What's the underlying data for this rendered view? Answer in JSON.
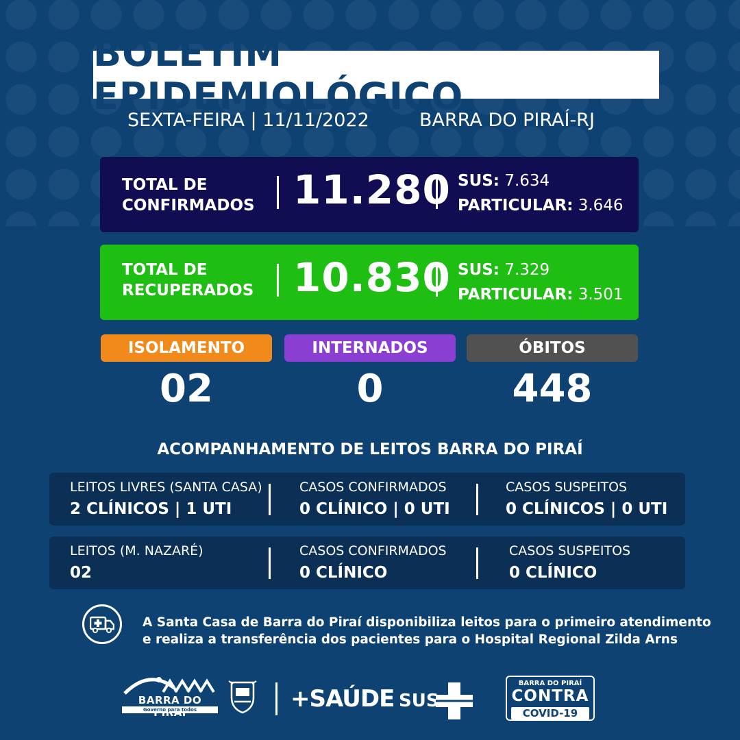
{
  "header": {
    "title": "BOLETIM EPIDEMIOLÓGICO",
    "date": "SEXTA-FEIRA | 11/11/2022",
    "city": "BARRA DO PIRAÍ-RJ"
  },
  "confirmed": {
    "label_line1": "TOTAL DE",
    "label_line2": "CONFIRMADOS",
    "total": "11.280",
    "sus_label": "SUS:",
    "sus_value": "7.634",
    "particular_label": "PARTICULAR:",
    "particular_value": "3.646"
  },
  "recovered": {
    "label_line1": "TOTAL DE",
    "label_line2": "RECUPERADOS",
    "total": "10.830",
    "sus_label": "SUS:",
    "sus_value": "7.329",
    "particular_label": "PARTICULAR:",
    "particular_value": "3.501"
  },
  "status": {
    "isolamento_label": "ISOLAMENTO",
    "isolamento_value": "02",
    "internados_label": "INTERNADOS",
    "internados_value": "0",
    "obitos_label": "ÓBITOS",
    "obitos_value": "448"
  },
  "beds": {
    "heading": "ACOMPANHAMENTO DE LEITOS BARRA DO PIRAÍ",
    "row1": [
      {
        "head": "LEITOS LIVRES (SANTA CASA)",
        "value": "2 CLÍNICOS | 1 UTI"
      },
      {
        "head": "CASOS CONFIRMADOS",
        "value": "0 CLÍNICO | 0 UTI"
      },
      {
        "head": "CASOS SUSPEITOS",
        "value": "0 CLÍNICOS | 0 UTI"
      }
    ],
    "row2": [
      {
        "head": "LEITOS (M. NAZARÉ)",
        "value": "02"
      },
      {
        "head": "CASOS CONFIRMADOS",
        "value": "0 CLÍNICO"
      },
      {
        "head": "CASOS SUSPEITOS",
        "value": "0 CLÍNICO"
      }
    ]
  },
  "info": {
    "line1": "A Santa Casa de Barra do Piraí disponibiliza leitos para o primeiro atendimento",
    "line2": "e realiza a transferência dos pacientes para o Hospital Regional Zilda Arns",
    "icon": "ambulance-icon"
  },
  "footer": {
    "barra_logo": "BARRA DO PIRAÍ",
    "barra_slogan": "Governo para todos",
    "saude": "+SAÚDE",
    "sus": "SUS",
    "covid_top": "BARRA DO PIRAÍ",
    "covid_mid": "CONTRA",
    "covid_bot": "COVID-19"
  },
  "colors": {
    "background": "#0d4273",
    "confirmed_box": "#110d52",
    "recovered_box": "#1fbe13",
    "isolamento": "#f28a1b",
    "internados": "#8b3ed2",
    "obitos": "#515151"
  }
}
